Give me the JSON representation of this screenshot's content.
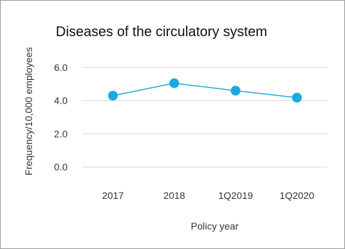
{
  "chart_data": {
    "type": "line",
    "title": "Diseases of the circulatory system",
    "xlabel": "Policy year",
    "ylabel": "Frequency/10,000 employees",
    "categories": [
      "2017",
      "2018",
      "1Q2019",
      "1Q2020"
    ],
    "values": [
      4.3,
      5.05,
      4.6,
      4.18
    ],
    "ylim": [
      0,
      6
    ],
    "yticks": [
      "0.0",
      "2.0",
      "4.0",
      "6.0"
    ],
    "grid": true,
    "legend": "none",
    "color": "#1aaae2"
  }
}
